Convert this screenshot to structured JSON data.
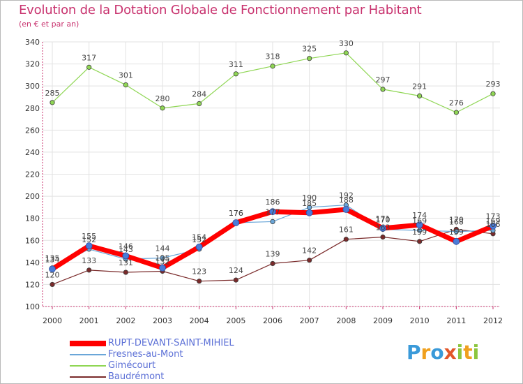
{
  "chart_data": {
    "type": "line",
    "title": "Evolution de la Dotation Globale de Fonctionnement par Habitant",
    "subtitle": "(en € et par an)",
    "xlabel": "",
    "ylabel": "",
    "ylim": [
      100,
      340
    ],
    "yticks": [
      100,
      120,
      140,
      160,
      180,
      200,
      220,
      240,
      260,
      280,
      300,
      320,
      340
    ],
    "categories": [
      "2000",
      "2001",
      "2002",
      "2003",
      "2004",
      "2005",
      "2006",
      "2007",
      "2008",
      "2009",
      "2010",
      "2011",
      "2012"
    ],
    "grid": true,
    "series": [
      {
        "name": "RUPT-DEVANT-SAINT-MIHIEL",
        "color": "#ff0000",
        "values": [
          134,
          155,
          146,
          135,
          154,
          176,
          186,
          185,
          188,
          171,
          174,
          159,
          173
        ]
      },
      {
        "name": "Fresnes-au-Mont",
        "color": "#6aa6d8",
        "values": [
          135,
          152,
          143,
          144,
          152,
          176,
          177,
          190,
          192,
          170,
          169,
          168,
          169
        ]
      },
      {
        "name": "Gimécourt",
        "color": "#8fd654",
        "values": [
          285,
          317,
          301,
          280,
          284,
          311,
          318,
          325,
          330,
          297,
          291,
          276,
          293
        ]
      },
      {
        "name": "Baudrémont",
        "color": "#7a2a2a",
        "values": [
          120,
          133,
          131,
          132,
          123,
          124,
          139,
          142,
          161,
          163,
          159,
          170,
          166
        ]
      }
    ],
    "labels": [
      [
        "134",
        "155",
        "146",
        "135",
        "154",
        "176",
        "186",
        "185",
        "188",
        "171",
        "174",
        "159",
        "173"
      ],
      [
        "135",
        "152",
        "143",
        "144",
        "152",
        "176",
        "177",
        "190",
        "192",
        "170",
        "169",
        "168",
        "169"
      ],
      [
        "285",
        "317",
        "301",
        "280",
        "284",
        "311",
        "318",
        "325",
        "330",
        "297",
        "291",
        "276",
        "293"
      ],
      [
        "120",
        "133",
        "131",
        "132",
        "123",
        "124",
        "139",
        "142",
        "161",
        "163",
        "159",
        "170",
        "166"
      ]
    ]
  },
  "legend": {
    "items": [
      "RUPT-DEVANT-SAINT-MIHIEL",
      "Fresnes-au-Mont",
      "Gimécourt",
      "Baudrémont"
    ]
  },
  "logo": {
    "letters": [
      "P",
      "r",
      "o",
      "x",
      "i",
      "t",
      "i"
    ],
    "colors": [
      "#3a9ad9",
      "#f0a01e",
      "#3a9ad9",
      "#e2562a",
      "#8cc63f",
      "#f0a01e",
      "#8cc63f"
    ]
  }
}
